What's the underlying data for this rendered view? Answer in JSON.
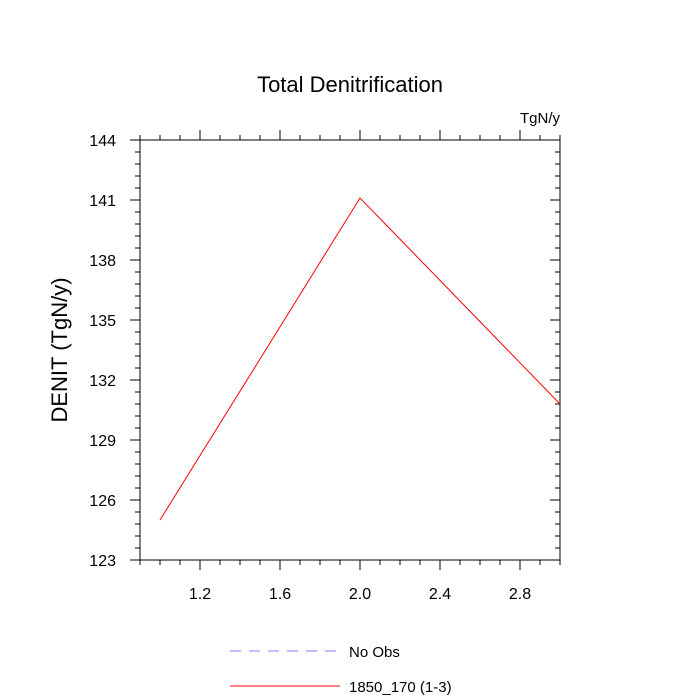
{
  "chart_data": {
    "type": "line",
    "title": "Total Denitrification",
    "units": "TgN/y",
    "ylabel": "DENIT  (TgN/y)",
    "xlabel": "",
    "xlim": [
      0.9,
      3.0
    ],
    "ylim": [
      123,
      144
    ],
    "x_ticks": [
      1.2,
      1.6,
      2.0,
      2.4,
      2.8
    ],
    "x_tick_labels": [
      "1.2",
      "1.6",
      "2.0",
      "2.4",
      "2.8"
    ],
    "y_ticks": [
      123,
      126,
      129,
      132,
      135,
      138,
      141,
      144
    ],
    "y_tick_labels": [
      "123",
      "126",
      "129",
      "132",
      "135",
      "138",
      "141",
      "144"
    ],
    "grid": false,
    "legend_position": "bottom",
    "series": [
      {
        "name": "1850_170 (1-3)",
        "color": "#ff0000",
        "dash": "solid",
        "x": [
          1.0,
          2.0,
          3.0
        ],
        "y": [
          125.0,
          141.1,
          130.8
        ]
      }
    ],
    "legend": [
      {
        "label": "No Obs",
        "color": "#7b7bff",
        "dash": "dashed"
      },
      {
        "label": "1850_170 (1-3)",
        "color": "#ff0000",
        "dash": "solid"
      }
    ]
  }
}
